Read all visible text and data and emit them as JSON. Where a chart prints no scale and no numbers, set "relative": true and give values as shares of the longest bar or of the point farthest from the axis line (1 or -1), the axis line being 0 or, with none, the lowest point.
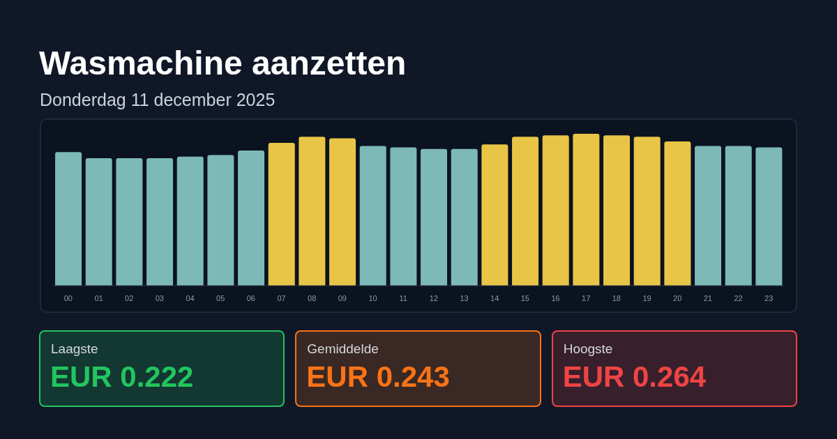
{
  "chart_data": [
    {
      "type": "bar",
      "title": "Wasmachine aanzetten",
      "subtitle": "Donderdag 11 december 2025",
      "categories": [
        "00",
        "01",
        "02",
        "03",
        "04",
        "05",
        "06",
        "07",
        "08",
        "09",
        "10",
        "11",
        "12",
        "13",
        "14",
        "15",
        "16",
        "17",
        "18",
        "19",
        "20",
        "21",
        "22",
        "23"
      ],
      "values": [
        0.88,
        0.84,
        0.84,
        0.84,
        0.85,
        0.86,
        0.89,
        0.94,
        0.98,
        0.97,
        0.92,
        0.91,
        0.9,
        0.9,
        0.93,
        0.98,
        0.99,
        1,
        0.99,
        0.98,
        0.95,
        0.92,
        0.92,
        0.91
      ],
      "colors": [
        "#7cb9b8",
        "#7cb9b8",
        "#7cb9b8",
        "#7cb9b8",
        "#7cb9b8",
        "#7cb9b8",
        "#7cb9b8",
        "#e8c547",
        "#e8c547",
        "#e8c547",
        "#7cb9b8",
        "#7cb9b8",
        "#7cb9b8",
        "#7cb9b8",
        "#e8c547",
        "#e8c547",
        "#e8c547",
        "#e8c547",
        "#e8c547",
        "#e8c547",
        "#e8c547",
        "#7cb9b8",
        "#7cb9b8",
        "#7cb9b8"
      ],
      "relative": true
    },
    {
      "type": "other",
      "title": "Laagste",
      "annotations": [
        "EUR 0.222"
      ],
      "color": "#22c55e"
    },
    {
      "type": "other",
      "title": "Gemiddelde",
      "annotations": [
        "EUR 0.243"
      ],
      "color": "#f97316"
    },
    {
      "type": "other",
      "title": "Hoogste",
      "annotations": [
        "EUR 0.264"
      ],
      "color": "#ef4444"
    }
  ]
}
